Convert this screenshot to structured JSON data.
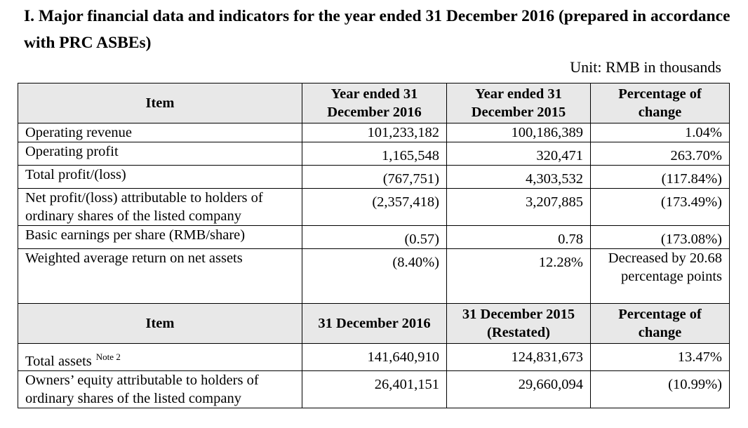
{
  "title": "I. Major financial data and indicators for the year ended 31 December 2016 (prepared in accordance with PRC ASBEs)",
  "unit": "Unit: RMB in thousands",
  "section1": {
    "headers": [
      "Item",
      "Year ended 31 December 2016",
      "Year ended 31 December 2015",
      "Percentage of change"
    ],
    "rows": [
      {
        "item": "Operating revenue",
        "y2016": "101,233,182",
        "y2015": "100,186,389",
        "change": "1.04%"
      },
      {
        "item": "Operating profit",
        "y2016": "1,165,548",
        "y2015": "320,471",
        "change": "263.70%"
      },
      {
        "item": "Total profit/(loss)",
        "y2016": "(767,751)",
        "y2015": "4,303,532",
        "change": "(117.84%)"
      },
      {
        "item": "Net profit/(loss) attributable to holders of ordinary shares of the listed company",
        "y2016": "(2,357,418)",
        "y2015": "3,207,885",
        "change": "(173.49%)"
      },
      {
        "item": "Basic earnings per share (RMB/share)",
        "y2016": "(0.57)",
        "y2015": "0.78",
        "change": "(173.08%)"
      },
      {
        "item": "Weighted average return on net assets",
        "y2016": "(8.40%)",
        "y2015": "12.28%",
        "change": "Decreased by 20.68 percentage points"
      }
    ]
  },
  "section2": {
    "headers": [
      "Item",
      "31 December 2016",
      "31 December 2015 (Restated)",
      "Percentage of change"
    ],
    "rows": [
      {
        "item": "Total assets",
        "note": "Note 2",
        "d2016": "141,640,910",
        "d2015": "124,831,673",
        "change": "13.47%"
      },
      {
        "item": "Owners’ equity attributable to holders of ordinary shares of the listed company",
        "d2016": "26,401,151",
        "d2015": "29,660,094",
        "change": "(10.99%)"
      }
    ]
  }
}
